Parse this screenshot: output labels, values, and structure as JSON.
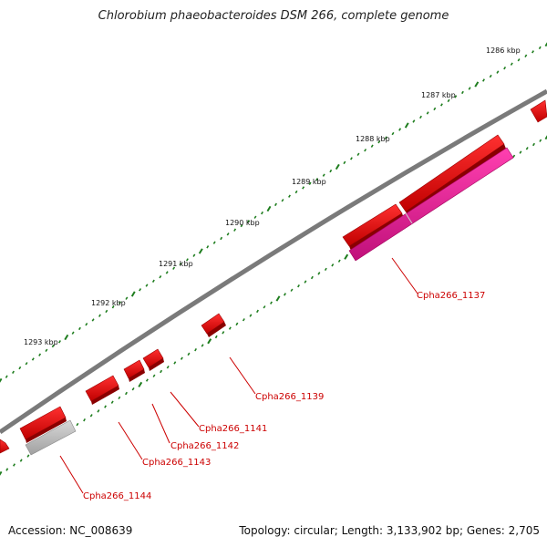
{
  "title": "Chlorobium phaeobacteroides DSM 266, complete genome",
  "footer": {
    "accession": "Accession: NC_008639",
    "summary": "Topology: circular; Length: 3,133,902 bp; Genes: 2,705"
  },
  "colors": {
    "backbone": "#7a7a7a",
    "gene_forward": "#ee0000",
    "gene_rna": "#ee1090",
    "gene_pseudo": "#bbbbbb",
    "tick": "#1e7d1e",
    "label": "#cc0000"
  },
  "kbp_markers": [
    {
      "label": "1286 kbp"
    },
    {
      "label": "1287 kbp"
    },
    {
      "label": "1288 kbp"
    },
    {
      "label": "1289 kbp"
    },
    {
      "label": "1290 kbp"
    },
    {
      "label": "1291 kbp"
    },
    {
      "label": "1292 kbp"
    },
    {
      "label": "1293 kbp"
    }
  ],
  "gene_labels": [
    {
      "name": "Cpha266_1137"
    },
    {
      "name": "Cpha266_1139"
    },
    {
      "name": "Cpha266_1141"
    },
    {
      "name": "Cpha266_1142"
    },
    {
      "name": "Cpha266_1143"
    },
    {
      "name": "Cpha266_1144"
    }
  ]
}
